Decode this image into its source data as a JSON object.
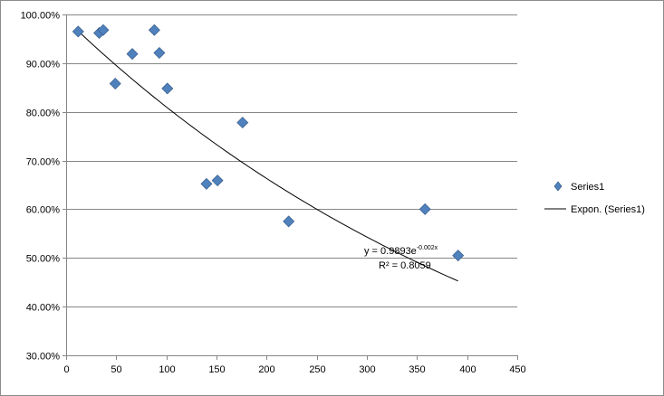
{
  "chart_data": {
    "type": "scatter",
    "title": "",
    "xlabel": "",
    "ylabel": "",
    "xlim": [
      0,
      450
    ],
    "ylim": [
      0.3,
      1.0
    ],
    "x_ticks": [
      0,
      50,
      100,
      150,
      200,
      250,
      300,
      350,
      400,
      450
    ],
    "x_tick_labels": [
      "0",
      "50",
      "100",
      "150",
      "200",
      "250",
      "300",
      "350",
      "400",
      "450"
    ],
    "y_ticks": [
      0.3,
      0.4,
      0.5,
      0.6,
      0.7,
      0.8,
      0.9,
      1.0
    ],
    "y_tick_labels": [
      "30.00%",
      "40.00%",
      "50.00%",
      "60.00%",
      "70.00%",
      "80.00%",
      "90.00%",
      "100.00%"
    ],
    "grid": {
      "horizontal": true,
      "vertical": false
    },
    "legend_position": "right",
    "series": [
      {
        "name": "Series1",
        "marker": "diamond",
        "color": "#4f81bd",
        "points": [
          {
            "x": 12,
            "y": 0.965
          },
          {
            "x": 33,
            "y": 0.962
          },
          {
            "x": 37,
            "y": 0.968
          },
          {
            "x": 49,
            "y": 0.858
          },
          {
            "x": 66,
            "y": 0.919
          },
          {
            "x": 88,
            "y": 0.968
          },
          {
            "x": 93,
            "y": 0.921
          },
          {
            "x": 101,
            "y": 0.848
          },
          {
            "x": 140,
            "y": 0.652
          },
          {
            "x": 151,
            "y": 0.659
          },
          {
            "x": 176,
            "y": 0.778
          },
          {
            "x": 222,
            "y": 0.575
          },
          {
            "x": 358,
            "y": 0.6
          },
          {
            "x": 391,
            "y": 0.505
          }
        ]
      }
    ],
    "trendline": {
      "name": "Expon. (Series1)",
      "type": "exponential",
      "a": 0.9893,
      "b": -0.002,
      "x_range": [
        12,
        391
      ],
      "color": "#000000"
    },
    "annotations": {
      "equation_main": "y = 0.9893e",
      "equation_exponent": "-0.002x",
      "r_squared": "R² = 0.8059"
    }
  }
}
